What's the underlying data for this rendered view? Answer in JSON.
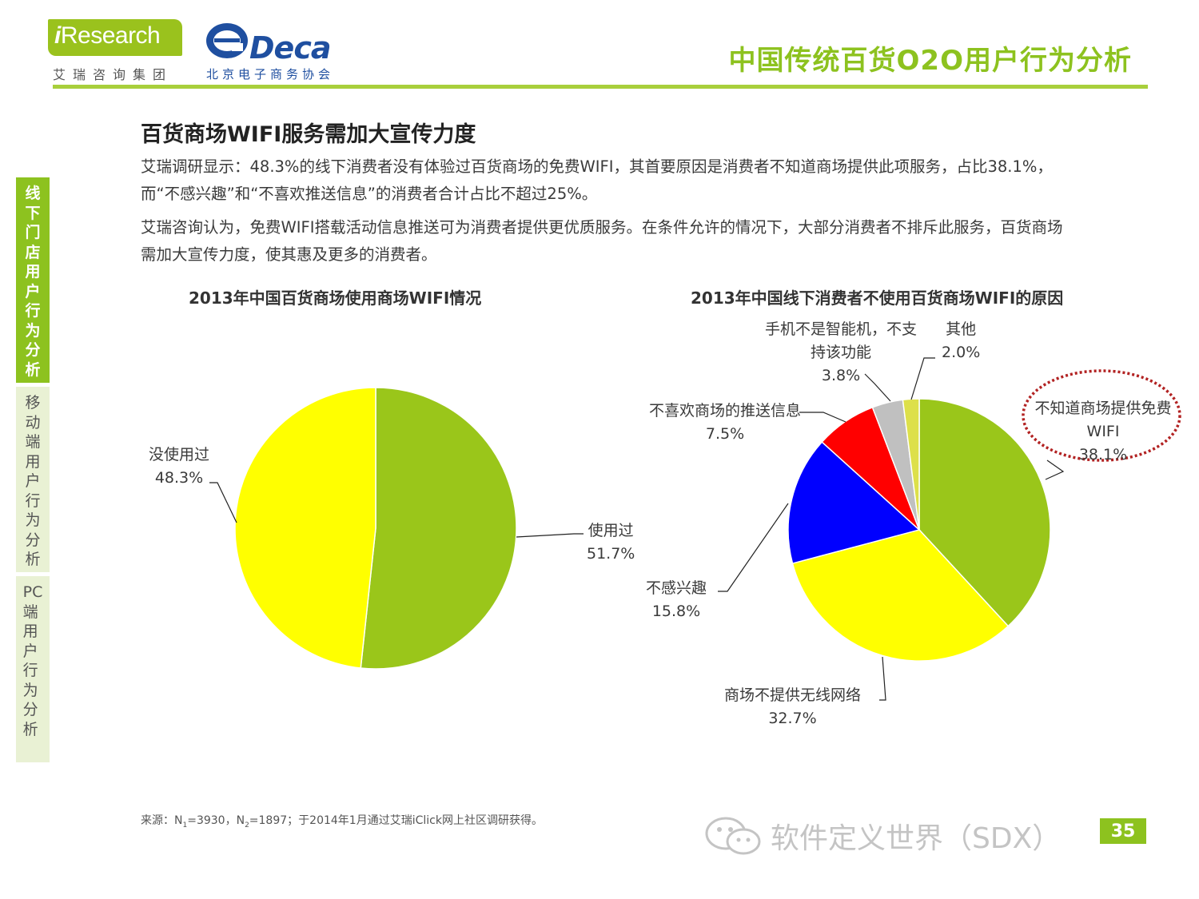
{
  "header": {
    "ir_logo_i": "i",
    "ir_logo_rest": "Research",
    "ir_logo_sub": "艾瑞咨询集团",
    "deca_logo": "Deca",
    "deca_logo_sub": "北京电子商务协会",
    "report_title": "中国传统百货O2O用户行为分析"
  },
  "side_nav": {
    "items": [
      {
        "label": "线下门店用户行为分析",
        "active": true
      },
      {
        "label": "移动端用户行为分析",
        "active": false
      },
      {
        "label": "PC端用户行为分析",
        "active": false
      }
    ]
  },
  "main": {
    "section_title": "百货商场WIFI服务需加大宣传力度",
    "paragraph1": "艾瑞调研显示：48.3%的线下消费者没有体验过百货商场的免费WIFI，其首要原因是消费者不知道商场提供此项服务，占比38.1%，而“不感兴趣”和“不喜欢推送信息”的消费者合计占比不超过25%。",
    "paragraph2": "艾瑞咨询认为，免费WIFI搭载活动信息推送可为消费者提供更优质服务。在条件允许的情况下，大部分消费者不排斥此服务，百货商场需加大宣传力度，使其惠及更多的消费者。"
  },
  "chart_data": [
    {
      "type": "pie",
      "title": "2013年中国百货商场使用商场WIFI情况",
      "slices": [
        {
          "label": "使用过",
          "value": 51.7,
          "display": "51.7%",
          "color": "#9ac61a"
        },
        {
          "label": "没使用过",
          "value": 48.3,
          "display": "48.3%",
          "color": "#ffff00"
        }
      ]
    },
    {
      "type": "pie",
      "title": "2013年中国线下消费者不使用百货商场WIFI的原因",
      "slices": [
        {
          "label": "不知道商场提供免费WIFI",
          "value": 38.1,
          "display": "38.1%",
          "color": "#9ac61a",
          "highlighted": true
        },
        {
          "label": "商场不提供无线网络",
          "value": 32.7,
          "display": "32.7%",
          "color": "#ffff00"
        },
        {
          "label": "不感兴趣",
          "value": 15.8,
          "display": "15.8%",
          "color": "#0000ff"
        },
        {
          "label": "不喜欢商场的推送信息",
          "value": 7.5,
          "display": "7.5%",
          "color": "#ff0000"
        },
        {
          "label": "手机不是智能机，不支持该功能",
          "value": 3.8,
          "display": "3.8%",
          "color": "#c0c0c0"
        },
        {
          "label": "其他",
          "value": 2.0,
          "display": "2.0%",
          "color": "#dde04a"
        }
      ]
    }
  ],
  "footer": {
    "source_prefix": "来源：N",
    "n1_sub": "1",
    "n1_val": "=3930，N",
    "n2_sub": "2",
    "n2_val": "=1897；于2014年1月通过艾瑞iClick网上社区调研获得。",
    "watermark": "软件定义世界（SDX）",
    "page_number": "35"
  }
}
